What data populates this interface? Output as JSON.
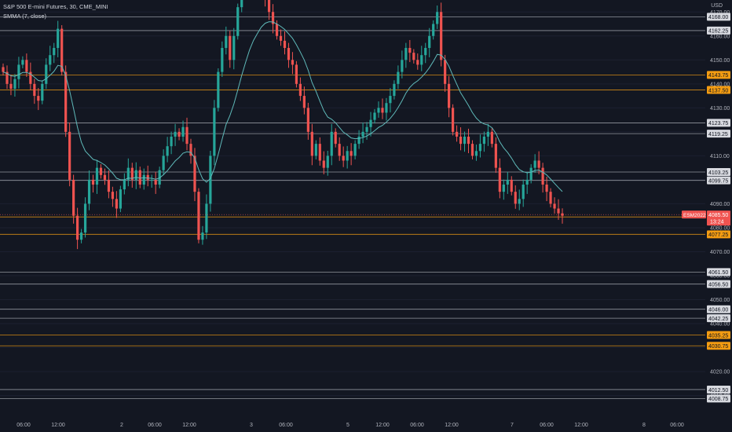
{
  "header": {
    "title": "S&P 500 E-mini Futures, 30, CME_MINI",
    "indicator": "SMMA (7, close)",
    "currency": "USD"
  },
  "theme": {
    "background": "#131722",
    "up": "#26a69a",
    "down": "#ef5350",
    "smma": "#5fb9b9",
    "level_white": "#c8cbd2",
    "level_orange": "#f39c12",
    "price_tag": "#ef5350",
    "axis_text": "#b2b5be"
  },
  "price_tag": {
    "symbol": "ESM2022",
    "price": "4085.50",
    "countdown": "13:24"
  },
  "chart_data": {
    "type": "candlestick",
    "y_axis": {
      "min": 4002,
      "max": 4175,
      "ticks": [
        4170,
        4160,
        4150,
        4140,
        4130,
        4120,
        4110,
        4100,
        4090,
        4080,
        4070,
        4060,
        4050,
        4040,
        4030,
        4020,
        4010
      ]
    },
    "x_axis": {
      "labels": [
        "06:00",
        "12:00",
        "2",
        "06:00",
        "12:00",
        "3",
        "06:00",
        "5",
        "12:00",
        "06:00",
        "12:00",
        "7",
        "06:00",
        "12:00",
        "8",
        "06:00"
      ]
    },
    "levels": [
      {
        "value": 4168.0,
        "label": "4168.00",
        "color": "white"
      },
      {
        "value": 4162.25,
        "label": "4162.25",
        "color": "white"
      },
      {
        "value": 4143.75,
        "label": "4143.75",
        "color": "orange"
      },
      {
        "value": 4137.5,
        "label": "4137.50",
        "color": "orange"
      },
      {
        "value": 4123.75,
        "label": "4123.75",
        "color": "white"
      },
      {
        "value": 4119.25,
        "label": "4119.25",
        "color": "white"
      },
      {
        "value": 4103.25,
        "label": "4103.25",
        "color": "white"
      },
      {
        "value": 4099.75,
        "label": "4099.75",
        "color": "white"
      },
      {
        "value": 4084.5,
        "label": "4084.50",
        "color": "orange"
      },
      {
        "value": 4077.25,
        "label": "4077.25",
        "color": "orange"
      },
      {
        "value": 4061.5,
        "label": "4061.50",
        "color": "white"
      },
      {
        "value": 4056.5,
        "label": "4056.50",
        "color": "white"
      },
      {
        "value": 4046.0,
        "label": "4046.00",
        "color": "white"
      },
      {
        "value": 4042.25,
        "label": "4042.25",
        "color": "white"
      },
      {
        "value": 4030.75,
        "label": "4030.75",
        "color": "orange"
      },
      {
        "value": 4035.25,
        "label": "4035.25",
        "color": "orange"
      },
      {
        "value": 4012.5,
        "label": "4012.50",
        "color": "white"
      },
      {
        "value": 4008.75,
        "label": "4008.75",
        "color": "white"
      }
    ],
    "path_note": "approximate close path, in price units",
    "close_path": [
      4145,
      4140,
      4138,
      4142,
      4148,
      4150,
      4145,
      4140,
      4135,
      4133,
      4140,
      4148,
      4152,
      4155,
      4163,
      4145,
      4120,
      4100,
      4085,
      4075,
      4078,
      4090,
      4100,
      4098,
      4105,
      4102,
      4100,
      4095,
      4092,
      4088,
      4096,
      4100,
      4105,
      4100,
      4104,
      4098,
      4102,
      4100,
      4100,
      4098,
      4104,
      4110,
      4114,
      4118,
      4120,
      4118,
      4122,
      4115,
      4110,
      4095,
      4075,
      4078,
      4090,
      4110,
      4130,
      4145,
      4155,
      4160,
      4150,
      4160,
      4172,
      4180,
      4182,
      4185,
      4182,
      4178,
      4180,
      4175,
      4170,
      4165,
      4160,
      4158,
      4155,
      4150,
      4148,
      4140,
      4135,
      4130,
      4120,
      4110,
      4115,
      4108,
      4105,
      4110,
      4120,
      4115,
      4110,
      4108,
      4112,
      4110,
      4115,
      4118,
      4120,
      4122,
      4125,
      4128,
      4130,
      4128,
      4132,
      4135,
      4140,
      4145,
      4150,
      4155,
      4153,
      4150,
      4148,
      4152,
      4155,
      4160,
      4165,
      4170,
      4150,
      4140,
      4130,
      4120,
      4118,
      4115,
      4118,
      4115,
      4110,
      4112,
      4115,
      4118,
      4120,
      4115,
      4105,
      4095,
      4098,
      4100,
      4095,
      4090,
      4092,
      4098,
      4100,
      4105,
      4108,
      4105,
      4098,
      4095,
      4090,
      4088,
      4086,
      4085
    ]
  }
}
